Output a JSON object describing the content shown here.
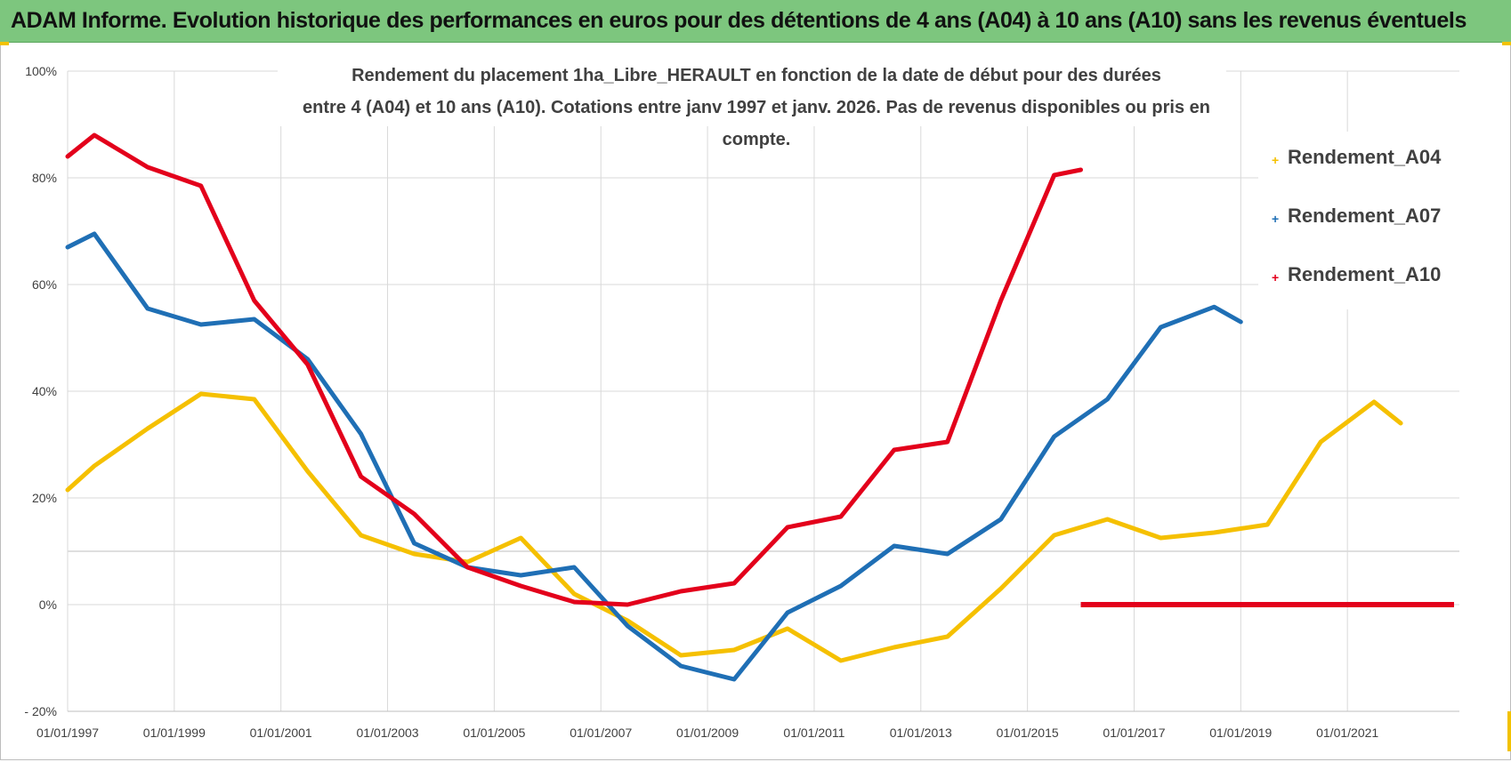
{
  "banner": {
    "title": "ADAM Informe. Evolution historique des performances en euros pour des détentions de 4 ans (A04) à 10 ans (A10) sans les revenus éventuels"
  },
  "colors": {
    "banner_bg": "#7dc67e",
    "A04": "#f5c000",
    "A07": "#1f6fb5",
    "A10": "#e3001b",
    "grid": "#d9d9d9"
  },
  "chart_data": {
    "type": "line",
    "title_lines": [
      "Rendement du placement 1ha_Libre_HERAULT en fonction de la date de début pour des durées",
      "entre 4 (A04) et 10 ans (A10).  Cotations entre janv 1997 et janv. 2026. Pas de revenus disponibles ou pris en compte."
    ],
    "x_ticks": [
      "01/01/1997",
      "01/01/1999",
      "01/01/2001",
      "01/01/2003",
      "01/01/2005",
      "01/01/2007",
      "01/01/2009",
      "01/01/2011",
      "01/01/2013",
      "01/01/2015",
      "01/01/2017",
      "01/01/2019",
      "01/01/2021"
    ],
    "y_ticks": [
      "100%",
      "80%",
      "60%",
      "40%",
      "20%",
      "0%",
      "- 20%"
    ],
    "ylim": [
      -20,
      100
    ],
    "xlim": [
      1997.0,
      2023.1
    ],
    "grid": true,
    "legend_position": "right",
    "series": [
      {
        "name": "Rendement_A04",
        "color_key": "A04",
        "points": [
          [
            1997.0,
            21.5
          ],
          [
            1997.5,
            26
          ],
          [
            1998.5,
            33
          ],
          [
            1999.5,
            39.5
          ],
          [
            2000.5,
            38.5
          ],
          [
            2001.5,
            25
          ],
          [
            2002.5,
            13
          ],
          [
            2003.5,
            9.5
          ],
          [
            2004.5,
            8
          ],
          [
            2005.5,
            12.5
          ],
          [
            2006.5,
            2
          ],
          [
            2007.5,
            -3
          ],
          [
            2008.5,
            -9.5
          ],
          [
            2009.5,
            -8.5
          ],
          [
            2010.5,
            -4.5
          ],
          [
            2011.5,
            -10.5
          ],
          [
            2012.5,
            -8
          ],
          [
            2013.5,
            -6
          ],
          [
            2014.5,
            3
          ],
          [
            2015.5,
            13
          ],
          [
            2016.5,
            16
          ],
          [
            2017.5,
            12.5
          ],
          [
            2018.5,
            13.5
          ],
          [
            2019.5,
            15
          ],
          [
            2020.5,
            30.5
          ],
          [
            2021.5,
            38
          ],
          [
            2022.0,
            34
          ]
        ]
      },
      {
        "name": "Rendement_A07",
        "color_key": "A07",
        "points": [
          [
            1997.0,
            67
          ],
          [
            1997.5,
            69.5
          ],
          [
            1998.5,
            55.5
          ],
          [
            1999.5,
            52.5
          ],
          [
            2000.5,
            53.5
          ],
          [
            2001.5,
            46
          ],
          [
            2002.5,
            32
          ],
          [
            2003.5,
            11.5
          ],
          [
            2004.5,
            7
          ],
          [
            2005.5,
            5.5
          ],
          [
            2006.5,
            7
          ],
          [
            2007.5,
            -4
          ],
          [
            2008.5,
            -11.5
          ],
          [
            2009.5,
            -14
          ],
          [
            2010.5,
            -1.5
          ],
          [
            2011.5,
            3.5
          ],
          [
            2012.5,
            11
          ],
          [
            2013.5,
            9.5
          ],
          [
            2014.5,
            16
          ],
          [
            2015.5,
            31.5
          ],
          [
            2016.5,
            38.5
          ],
          [
            2017.5,
            52
          ],
          [
            2018.5,
            55.8
          ],
          [
            2019.0,
            53
          ]
        ]
      },
      {
        "name": "Rendement_A10",
        "color_key": "A10",
        "points": [
          [
            1997.0,
            84
          ],
          [
            1997.5,
            88
          ],
          [
            1998.5,
            82
          ],
          [
            1999.5,
            78.5
          ],
          [
            2000.5,
            57
          ],
          [
            2001.5,
            45
          ],
          [
            2002.5,
            24
          ],
          [
            2003.5,
            17
          ],
          [
            2004.5,
            7
          ],
          [
            2005.5,
            3.5
          ],
          [
            2006.5,
            0.5
          ],
          [
            2007.5,
            0
          ],
          [
            2008.5,
            2.5
          ],
          [
            2009.5,
            4
          ],
          [
            2010.5,
            14.5
          ],
          [
            2011.5,
            16.5
          ],
          [
            2012.5,
            29
          ],
          [
            2013.5,
            30.5
          ],
          [
            2014.5,
            57
          ],
          [
            2015.5,
            80.5
          ],
          [
            2016.0,
            81.5
          ]
        ],
        "zero_segment": [
          [
            2016.0,
            0
          ],
          [
            2023.0,
            0
          ]
        ]
      }
    ]
  }
}
